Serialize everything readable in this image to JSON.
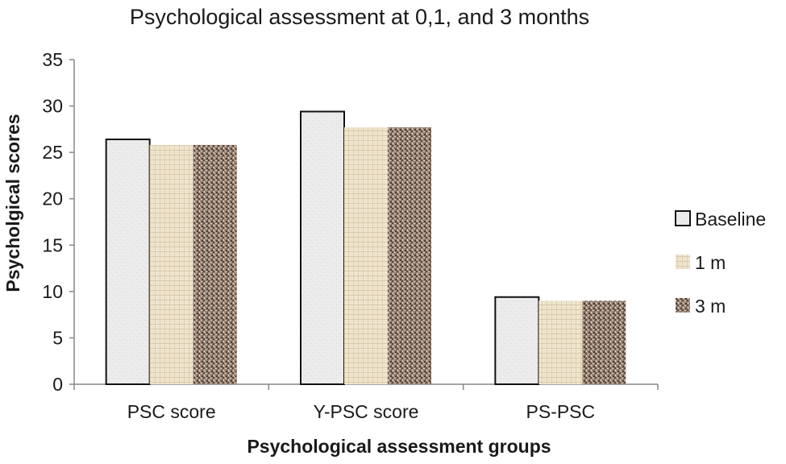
{
  "chart_data": {
    "type": "bar",
    "title": "Psychological assessment at 0,1, and 3 months",
    "xlabel": "Psychological assessment groups",
    "ylabel": "Psycholgical scores",
    "categories": [
      "PSC score",
      "Y-PSC score",
      "PS-PSC"
    ],
    "series": [
      {
        "name": "Baseline",
        "values": [
          26.4,
          29.4,
          9.4
        ],
        "pattern": "baseline"
      },
      {
        "name": "1 m",
        "values": [
          25.8,
          27.7,
          9.0
        ],
        "pattern": "one"
      },
      {
        "name": "3 m",
        "values": [
          25.8,
          27.7,
          9.0
        ],
        "pattern": "three"
      }
    ],
    "ylim": [
      0,
      35
    ],
    "yticks": [
      "0",
      "5",
      "10",
      "15",
      "20",
      "25",
      "30",
      "35"
    ],
    "legend_position": "right",
    "grid": false
  }
}
